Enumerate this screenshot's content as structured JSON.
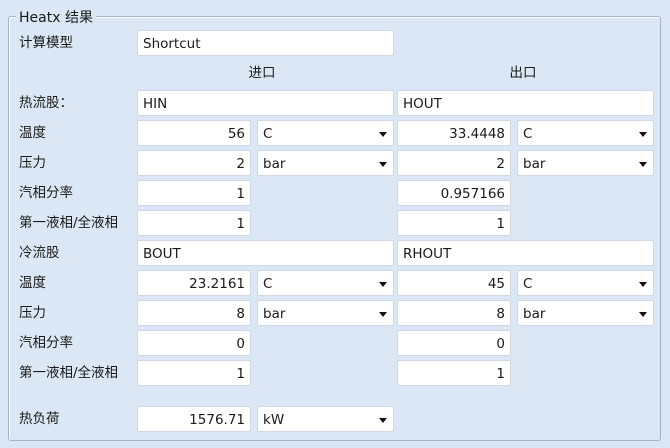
{
  "group_title": "Heatx 结果",
  "model": {
    "label": "计算模型",
    "value": "Shortcut"
  },
  "headers": {
    "inlet": "进口",
    "outlet": "出口"
  },
  "hot": {
    "label": "热流股：",
    "in_stream": "HIN",
    "out_stream": "HOUT",
    "temperature": {
      "label": "温度",
      "in": "56",
      "in_unit": "C",
      "out": "33.4448",
      "out_unit": "C"
    },
    "pressure": {
      "label": "压力",
      "in": "2",
      "in_unit": "bar",
      "out": "2",
      "out_unit": "bar"
    },
    "vapor_fraction": {
      "label": "汽相分率",
      "in": "1",
      "out": "0.957166"
    },
    "liquid_ratio": {
      "label": "第一液相/全液相",
      "in": "1",
      "out": "1"
    }
  },
  "cold": {
    "label": "冷流股",
    "in_stream": "BOUT",
    "out_stream": "RHOUT",
    "temperature": {
      "label": "温度",
      "in": "23.2161",
      "in_unit": "C",
      "out": "45",
      "out_unit": "C"
    },
    "pressure": {
      "label": "压力",
      "in": "8",
      "in_unit": "bar",
      "out": "8",
      "out_unit": "bar"
    },
    "vapor_fraction": {
      "label": "汽相分率",
      "in": "0",
      "out": "0"
    },
    "liquid_ratio": {
      "label": "第一液相/全液相",
      "in": "1",
      "out": "1"
    }
  },
  "duty": {
    "label": "热负荷",
    "value": "1576.71",
    "unit": "kW"
  }
}
